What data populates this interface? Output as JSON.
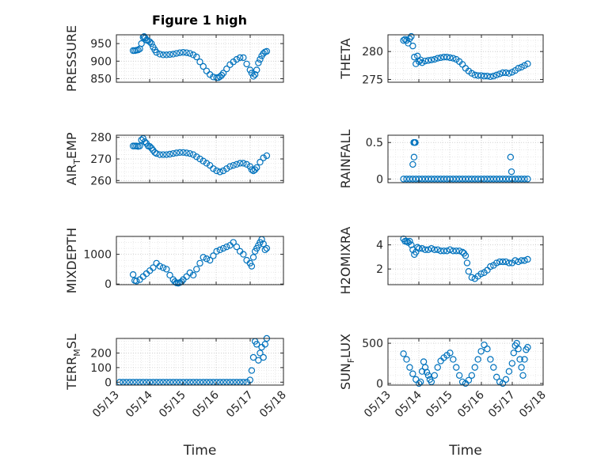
{
  "figure_title": "Figure 1 high",
  "shared_xlabel": "Time",
  "x_tick_labels": [
    "05/13",
    "05/14",
    "05/15",
    "05/16",
    "05/17",
    "05/18"
  ],
  "colors": {
    "marker": "#0072BD",
    "axis": "#262626",
    "grid": "#dcdcdc"
  },
  "chart_data": [
    {
      "type": "scatter",
      "title": "Figure 1 high",
      "ylabel": "PRESSURE",
      "ylim": [
        840,
        975
      ],
      "yticks": [
        850,
        900,
        950
      ],
      "xlim": [
        0,
        5
      ],
      "xlabel": "",
      "series": [
        {
          "x": [
            0.5,
            0.55,
            0.6,
            0.65,
            0.7,
            0.75,
            0.8,
            0.83,
            0.86,
            0.9,
            0.95,
            1.0,
            1.05,
            1.1,
            1.15,
            1.2,
            1.3,
            1.4,
            1.5,
            1.6,
            1.7,
            1.8,
            1.9,
            2.0,
            2.1,
            2.2,
            2.3,
            2.4,
            2.5,
            2.6,
            2.7,
            2.8,
            2.9,
            3.0,
            3.05,
            3.1,
            3.15,
            3.2,
            3.3,
            3.4,
            3.5,
            3.6,
            3.7,
            3.8,
            3.9,
            4.0,
            4.05,
            4.1,
            4.15,
            4.2,
            4.25,
            4.3,
            4.35,
            4.4,
            4.45,
            4.5
          ],
          "y": [
            930,
            930,
            931,
            932,
            935,
            950,
            968,
            970,
            966,
            960,
            958,
            955,
            950,
            940,
            932,
            925,
            920,
            918,
            918,
            919,
            920,
            922,
            924,
            925,
            924,
            922,
            918,
            912,
            898,
            885,
            872,
            862,
            855,
            853,
            853,
            856,
            860,
            866,
            878,
            890,
            898,
            905,
            910,
            910,
            892,
            875,
            866,
            857,
            862,
            875,
            895,
            905,
            915,
            922,
            926,
            928
          ]
        }
      ]
    },
    {
      "type": "scatter",
      "title": "",
      "ylabel": "THETA",
      "ylim": [
        274.5,
        283
      ],
      "yticks": [
        275,
        280
      ],
      "xlim": [
        0,
        5
      ],
      "xlabel": "",
      "series": [
        {
          "x": [
            0.5,
            0.55,
            0.6,
            0.65,
            0.7,
            0.75,
            0.8,
            0.85,
            0.9,
            0.95,
            1.0,
            1.05,
            1.1,
            1.2,
            1.3,
            1.4,
            1.5,
            1.6,
            1.7,
            1.8,
            1.9,
            2.0,
            2.1,
            2.2,
            2.3,
            2.4,
            2.5,
            2.6,
            2.7,
            2.8,
            2.9,
            3.0,
            3.1,
            3.2,
            3.3,
            3.4,
            3.5,
            3.6,
            3.7,
            3.8,
            3.9,
            4.0,
            4.1,
            4.2,
            4.3,
            4.4,
            4.5
          ],
          "y": [
            282.0,
            282.2,
            282.0,
            281.5,
            282.3,
            282.7,
            281.0,
            279.0,
            277.8,
            279.2,
            278.2,
            278.5,
            278.0,
            278.3,
            278.4,
            278.5,
            278.6,
            278.8,
            278.9,
            279.0,
            279.0,
            278.9,
            278.8,
            278.6,
            278.2,
            277.7,
            277.0,
            276.5,
            276.1,
            275.8,
            275.7,
            275.7,
            275.6,
            275.6,
            275.5,
            275.6,
            275.8,
            276.0,
            276.2,
            276.2,
            276.1,
            276.3,
            276.6,
            277.0,
            277.2,
            277.5,
            277.8
          ]
        }
      ]
    },
    {
      "type": "scatter",
      "title": "",
      "ylabel": "AIR_TEMP",
      "ylim": [
        259,
        281
      ],
      "yticks": [
        260,
        270,
        280
      ],
      "xlim": [
        0,
        5
      ],
      "xlabel": "",
      "series": [
        {
          "x": [
            0.5,
            0.55,
            0.6,
            0.65,
            0.7,
            0.75,
            0.8,
            0.85,
            0.9,
            0.95,
            1.0,
            1.05,
            1.1,
            1.15,
            1.2,
            1.3,
            1.4,
            1.5,
            1.6,
            1.7,
            1.8,
            1.9,
            2.0,
            2.1,
            2.2,
            2.3,
            2.4,
            2.5,
            2.6,
            2.7,
            2.8,
            2.9,
            3.0,
            3.1,
            3.2,
            3.3,
            3.4,
            3.5,
            3.6,
            3.7,
            3.8,
            3.9,
            4.0,
            4.05,
            4.1,
            4.15,
            4.2,
            4.3,
            4.4,
            4.5
          ],
          "y": [
            276.0,
            276.0,
            276.0,
            275.8,
            276.0,
            278.8,
            279.5,
            278.0,
            277.2,
            276.0,
            275.8,
            275.0,
            274.0,
            273.0,
            272.5,
            272.0,
            272.0,
            272.0,
            272.2,
            272.5,
            272.8,
            273.0,
            273.0,
            272.8,
            272.5,
            272.0,
            271.0,
            270.0,
            269.0,
            268.0,
            267.0,
            265.5,
            264.5,
            264.0,
            264.5,
            265.5,
            266.5,
            267.0,
            267.5,
            268.0,
            268.0,
            267.5,
            266.5,
            265.0,
            264.5,
            265.0,
            266.0,
            268.5,
            270.5,
            271.5
          ]
        }
      ]
    },
    {
      "type": "scatter",
      "title": "",
      "ylabel": "RAINFALL",
      "ylim": [
        -0.05,
        0.6
      ],
      "yticks": [
        0,
        0.5
      ],
      "xlim": [
        0,
        5
      ],
      "xlabel": "",
      "series": [
        {
          "x": [
            0.5,
            0.6,
            0.7,
            0.8,
            0.9,
            1.0,
            1.1,
            1.2,
            1.3,
            1.4,
            1.5,
            1.6,
            1.7,
            1.8,
            1.9,
            2.0,
            2.1,
            2.2,
            2.3,
            2.4,
            2.5,
            2.6,
            2.7,
            2.8,
            2.9,
            3.0,
            3.1,
            3.2,
            3.3,
            3.4,
            3.5,
            3.6,
            3.7,
            3.8,
            3.9,
            4.0,
            4.1,
            4.2,
            4.3,
            4.4,
            4.5,
            0.8,
            0.83,
            0.86,
            0.84,
            0.88,
            3.95,
            3.98
          ],
          "y": [
            0,
            0,
            0,
            0,
            0,
            0,
            0,
            0,
            0,
            0,
            0,
            0,
            0,
            0,
            0,
            0,
            0,
            0,
            0,
            0,
            0,
            0,
            0,
            0,
            0,
            0,
            0,
            0,
            0,
            0,
            0,
            0,
            0,
            0,
            0,
            0,
            0,
            0,
            0,
            0,
            0,
            0.2,
            0.5,
            0.5,
            0.3,
            0.5,
            0.3,
            0.1
          ]
        }
      ]
    },
    {
      "type": "scatter",
      "title": "",
      "ylabel": "MIXDEPTH",
      "ylim": [
        -20,
        1600
      ],
      "yticks": [
        0,
        1000
      ],
      "xlim": [
        0,
        5
      ],
      "xlabel": "",
      "series": [
        {
          "x": [
            0.5,
            0.55,
            0.6,
            0.7,
            0.8,
            0.9,
            1.0,
            1.1,
            1.2,
            1.3,
            1.4,
            1.5,
            1.6,
            1.7,
            1.75,
            1.8,
            1.85,
            1.9,
            1.95,
            2.0,
            2.1,
            2.2,
            2.3,
            2.4,
            2.5,
            2.6,
            2.7,
            2.8,
            2.9,
            3.0,
            3.1,
            3.2,
            3.3,
            3.4,
            3.5,
            3.6,
            3.7,
            3.8,
            3.9,
            4.0,
            4.05,
            4.1,
            4.15,
            4.2,
            4.25,
            4.3,
            4.35,
            4.4,
            4.45,
            4.5
          ],
          "y": [
            320,
            120,
            100,
            150,
            250,
            350,
            450,
            550,
            700,
            600,
            550,
            500,
            300,
            150,
            80,
            40,
            30,
            50,
            80,
            150,
            250,
            380,
            300,
            500,
            700,
            900,
            850,
            800,
            950,
            1100,
            1150,
            1200,
            1250,
            1300,
            1400,
            1250,
            1100,
            1000,
            800,
            700,
            600,
            900,
            1100,
            1200,
            1300,
            1400,
            1500,
            1350,
            1150,
            1200
          ]
        }
      ]
    },
    {
      "type": "scatter",
      "title": "",
      "ylabel": "H2OMIXRA",
      "ylim": [
        0.7,
        4.7
      ],
      "yticks": [
        2,
        4
      ],
      "xlim": [
        0,
        5
      ],
      "xlabel": "",
      "series": [
        {
          "x": [
            0.5,
            0.55,
            0.6,
            0.65,
            0.7,
            0.75,
            0.8,
            0.85,
            0.9,
            0.95,
            1.0,
            1.1,
            1.2,
            1.3,
            1.4,
            1.5,
            1.6,
            1.7,
            1.8,
            1.9,
            2.0,
            2.1,
            2.2,
            2.3,
            2.4,
            2.45,
            2.5,
            2.55,
            2.6,
            2.7,
            2.8,
            2.9,
            3.0,
            3.1,
            3.2,
            3.3,
            3.4,
            3.5,
            3.6,
            3.7,
            3.8,
            3.9,
            4.0,
            4.1,
            4.2,
            4.3,
            4.4,
            4.5
          ],
          "y": [
            4.5,
            4.3,
            4.3,
            4.2,
            4.3,
            4.0,
            3.6,
            3.2,
            3.4,
            3.8,
            3.7,
            3.7,
            3.6,
            3.6,
            3.7,
            3.6,
            3.6,
            3.5,
            3.5,
            3.5,
            3.6,
            3.5,
            3.5,
            3.5,
            3.4,
            3.3,
            3.1,
            2.5,
            1.8,
            1.3,
            1.2,
            1.4,
            1.6,
            1.7,
            1.9,
            2.2,
            2.3,
            2.5,
            2.6,
            2.6,
            2.6,
            2.5,
            2.5,
            2.7,
            2.6,
            2.7,
            2.7,
            2.8
          ]
        }
      ]
    },
    {
      "type": "scatter",
      "title": "",
      "ylabel": "TERR_MSL",
      "ylim": [
        -20,
        300
      ],
      "yticks": [
        0,
        100,
        200
      ],
      "xlim": [
        0,
        5
      ],
      "xlabel": "",
      "series": [
        {
          "x": [
            0.1,
            0.2,
            0.3,
            0.4,
            0.5,
            0.6,
            0.7,
            0.8,
            0.9,
            1.0,
            1.1,
            1.2,
            1.3,
            1.4,
            1.5,
            1.6,
            1.7,
            1.8,
            1.9,
            2.0,
            2.1,
            2.2,
            2.3,
            2.4,
            2.5,
            2.6,
            2.7,
            2.8,
            2.9,
            3.0,
            3.1,
            3.2,
            3.3,
            3.4,
            3.5,
            3.6,
            3.7,
            3.8,
            3.9,
            4.0,
            4.05,
            4.1,
            4.15,
            4.2,
            4.25,
            4.3,
            4.35,
            4.4,
            4.45,
            4.5
          ],
          "y": [
            0,
            0,
            0,
            0,
            0,
            0,
            0,
            0,
            0,
            0,
            0,
            0,
            0,
            0,
            0,
            0,
            0,
            0,
            0,
            0,
            0,
            0,
            0,
            0,
            0,
            0,
            0,
            0,
            0,
            0,
            0,
            0,
            0,
            0,
            0,
            0,
            0,
            0,
            0,
            15,
            80,
            170,
            280,
            260,
            150,
            200,
            240,
            170,
            260,
            300
          ]
        }
      ]
    },
    {
      "type": "scatter",
      "title": "",
      "ylabel": "SUN_FLUX",
      "ylim": [
        -20,
        560
      ],
      "yticks": [
        0,
        500
      ],
      "xlim": [
        0,
        5
      ],
      "xlabel": "",
      "series": [
        {
          "x": [
            0.5,
            0.6,
            0.7,
            0.8,
            0.9,
            1.0,
            1.05,
            1.1,
            1.15,
            1.2,
            1.25,
            1.3,
            1.35,
            1.4,
            1.5,
            1.6,
            1.7,
            1.8,
            1.9,
            2.0,
            2.1,
            2.2,
            2.3,
            2.4,
            2.5,
            2.6,
            2.7,
            2.8,
            2.9,
            3.0,
            3.1,
            3.2,
            3.3,
            3.4,
            3.5,
            3.6,
            3.7,
            3.8,
            3.9,
            4.0,
            4.05,
            4.1,
            4.15,
            4.2,
            4.25,
            4.3,
            4.35,
            4.4,
            4.45,
            4.5
          ],
          "y": [
            370,
            300,
            200,
            120,
            50,
            0,
            20,
            150,
            270,
            200,
            140,
            100,
            50,
            20,
            100,
            200,
            280,
            320,
            350,
            380,
            300,
            200,
            100,
            20,
            0,
            40,
            100,
            200,
            300,
            400,
            480,
            430,
            300,
            200,
            80,
            20,
            0,
            50,
            150,
            250,
            380,
            470,
            500,
            430,
            300,
            200,
            100,
            300,
            420,
            450
          ]
        }
      ]
    }
  ]
}
